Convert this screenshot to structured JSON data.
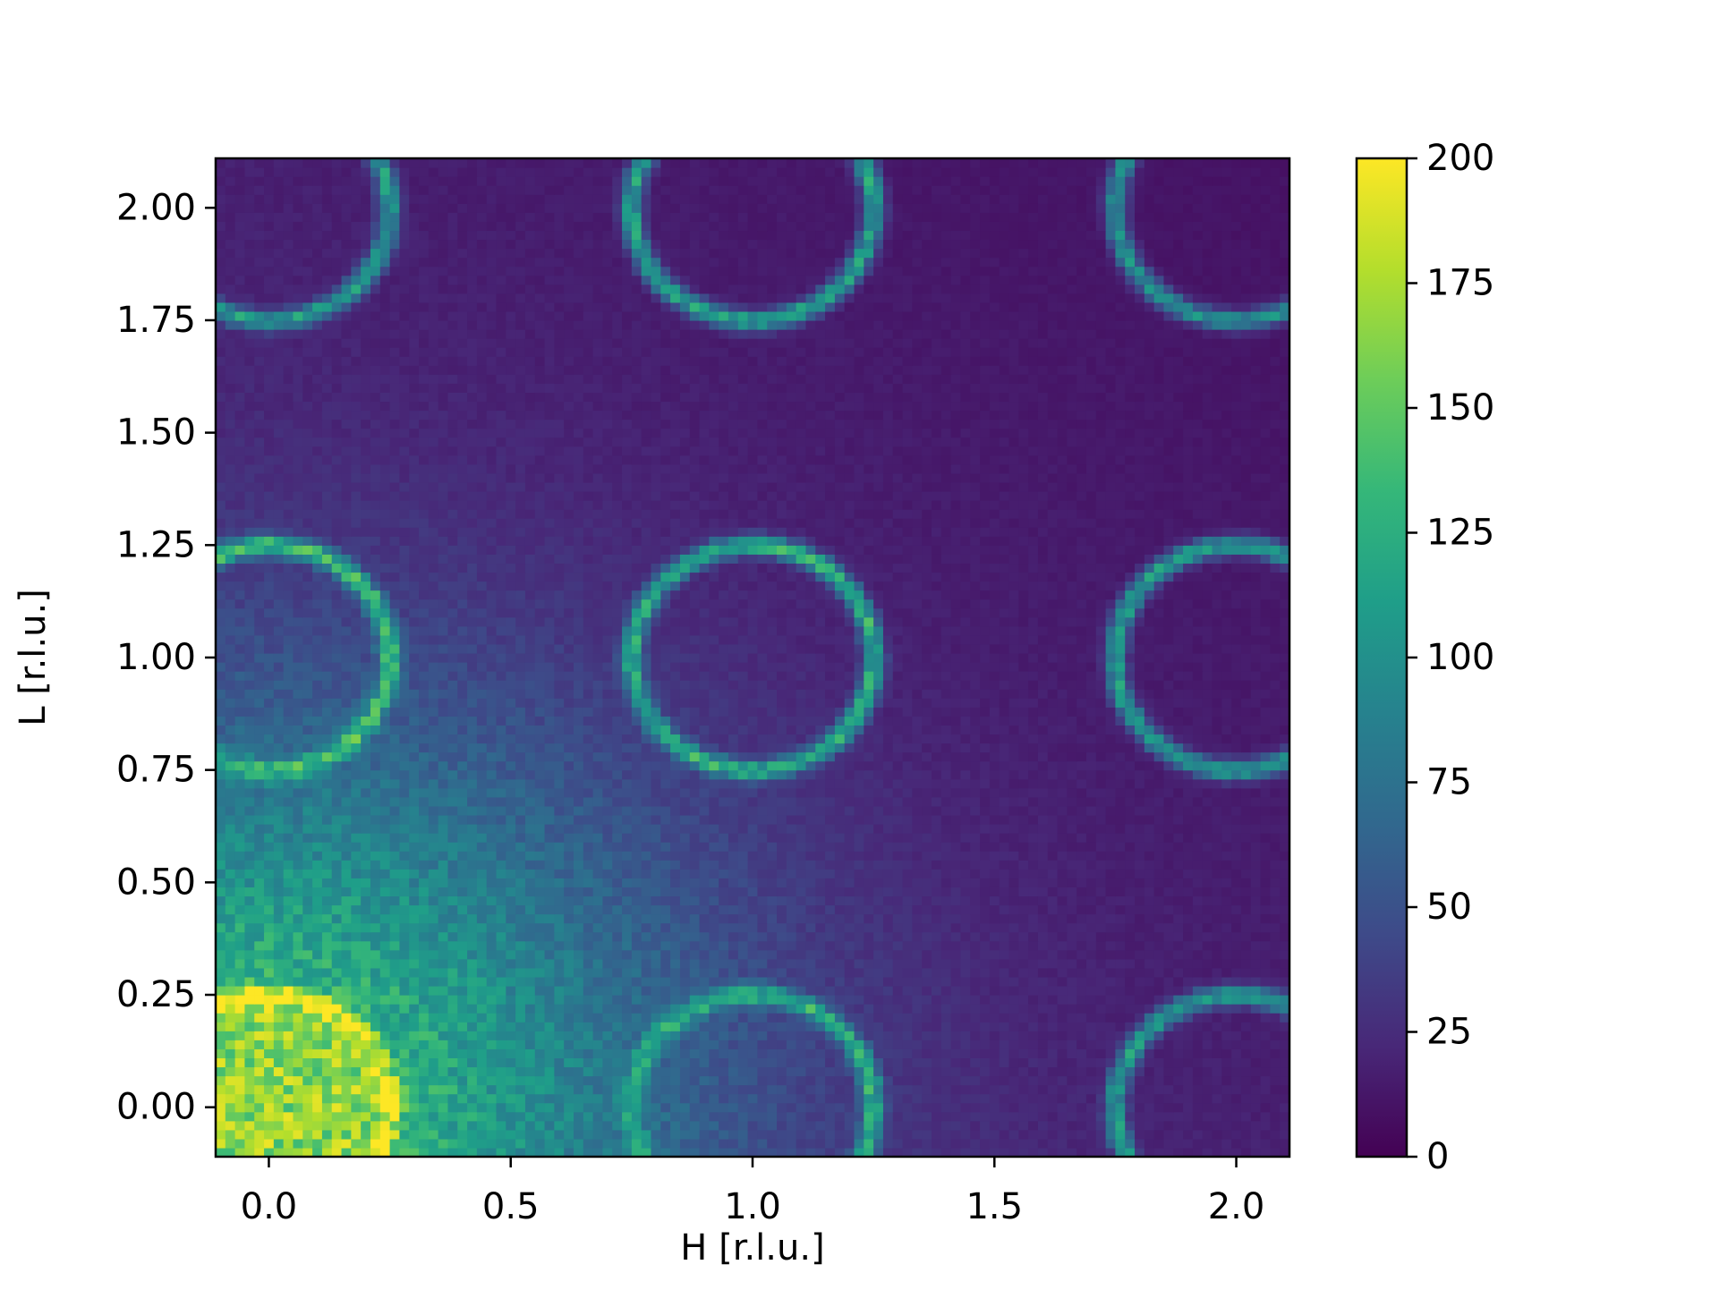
{
  "chart_data": {
    "type": "heatmap",
    "title": "",
    "xlabel": "H [r.l.u.]",
    "ylabel": "L [r.l.u.]",
    "xlim": [
      -0.11,
      2.11
    ],
    "ylim": [
      -0.11,
      2.11
    ],
    "xticks": [
      0.0,
      0.5,
      1.0,
      1.5,
      2.0
    ],
    "xtick_labels": [
      "0.0",
      "0.5",
      "1.0",
      "1.5",
      "2.0"
    ],
    "yticks": [
      0.0,
      0.25,
      0.5,
      0.75,
      1.0,
      1.25,
      1.5,
      1.75,
      2.0
    ],
    "ytick_labels": [
      "0.00",
      "0.25",
      "0.50",
      "0.75",
      "1.00",
      "1.25",
      "1.50",
      "1.75",
      "2.00"
    ],
    "colormap": "viridis",
    "colorbar": {
      "vmin": 0,
      "vmax": 200,
      "ticks": [
        0,
        25,
        50,
        75,
        100,
        125,
        150,
        175,
        200
      ],
      "tick_labels": [
        "0",
        "25",
        "50",
        "75",
        "100",
        "125",
        "150",
        "175",
        "200"
      ]
    },
    "grid": false,
    "pixel_step": 0.02,
    "background": {
      "base_intensity": 10,
      "diffuse_peak_intensity": 115,
      "diffuse_center": [
        0.0,
        0.0
      ],
      "diffuse_width": 0.85
    },
    "rings": [
      {
        "center": [
          0,
          0
        ],
        "radius": 0.25,
        "ring_intensity": 200,
        "inner_intensity": 165
      },
      {
        "center": [
          1,
          0
        ],
        "radius": 0.25,
        "ring_intensity": 130,
        "inner_intensity": 0
      },
      {
        "center": [
          2,
          0
        ],
        "radius": 0.25,
        "ring_intensity": 110,
        "inner_intensity": 0
      },
      {
        "center": [
          0,
          1
        ],
        "radius": 0.25,
        "ring_intensity": 140,
        "inner_intensity": 0
      },
      {
        "center": [
          1,
          1
        ],
        "radius": 0.25,
        "ring_intensity": 125,
        "inner_intensity": 0
      },
      {
        "center": [
          2,
          1
        ],
        "radius": 0.25,
        "ring_intensity": 110,
        "inner_intensity": 0
      },
      {
        "center": [
          0,
          2
        ],
        "radius": 0.25,
        "ring_intensity": 110,
        "inner_intensity": 0
      },
      {
        "center": [
          1,
          2
        ],
        "radius": 0.25,
        "ring_intensity": 115,
        "inner_intensity": 0
      },
      {
        "center": [
          2,
          2
        ],
        "radius": 0.25,
        "ring_intensity": 100,
        "inner_intensity": 0
      }
    ],
    "ring_halfwidth": 0.022
  }
}
